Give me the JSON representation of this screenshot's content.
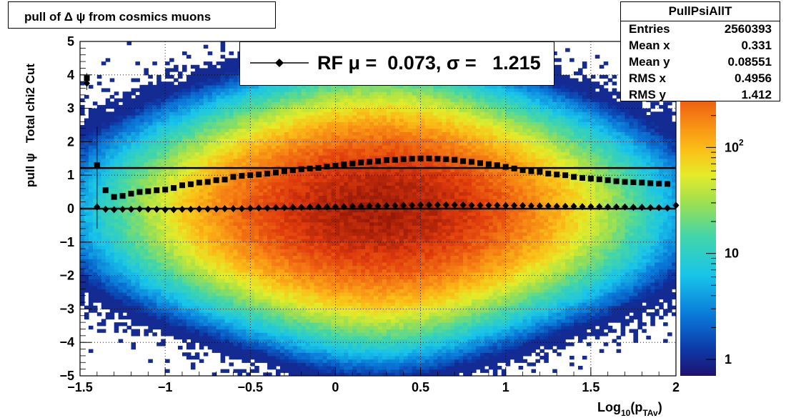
{
  "title": "pull of Δ ψ from cosmics muons",
  "stats": {
    "name": "PullPsiAllT",
    "rows": [
      {
        "key": "Entries",
        "value": "2560393"
      },
      {
        "key": "Mean x",
        "value": "0.331"
      },
      {
        "key": "Mean y",
        "value": "0.08551"
      },
      {
        "key": "RMS x",
        "value": "0.4956"
      },
      {
        "key": "RMS y",
        "value": "1.412"
      }
    ]
  },
  "legend": {
    "text": "RF μ =  0.073, σ =   1.215"
  },
  "colors": {
    "accent": "#000000"
  },
  "chart_data": {
    "type": "heatmap",
    "title": "pull of Δ ψ from cosmics muons",
    "xlabel": "Log10(pTAv)",
    "ylabel": "pull ψ   Total chi2 Cut",
    "xlim": [
      -1.5,
      2
    ],
    "ylim": [
      -5,
      5
    ],
    "x_tick_labels": [
      "−1.5",
      "−1",
      "−0.5",
      "0",
      "0.5",
      "1",
      "1.5",
      "2"
    ],
    "x_ticks": [
      -1.5,
      -1,
      -0.5,
      0,
      0.5,
      1,
      1.5,
      2
    ],
    "y_tick_labels": [
      "5",
      "4",
      "3",
      "2",
      "1",
      "0",
      "−1",
      "−2",
      "−3",
      "−4",
      "−5"
    ],
    "y_ticks": [
      5,
      4,
      3,
      2,
      1,
      0,
      -1,
      -2,
      -3,
      -4,
      -5
    ],
    "grid": true,
    "colorbar": {
      "scale": "log",
      "min": 0.7,
      "max": 1000,
      "labels": [
        {
          "value": 1,
          "text": "1"
        },
        {
          "value": 10,
          "text": "10"
        },
        {
          "value": 100,
          "text": "10",
          "sup": "2"
        }
      ]
    },
    "density": {
      "center_x": 0.25,
      "sigma_x": 0.55,
      "sigma_y": 1.4,
      "peak": 700
    },
    "reference_lines": [
      {
        "y": 1.215
      },
      {
        "y": 0
      }
    ],
    "series": [
      {
        "marker": "square",
        "x": [
          -1.46,
          -1.4,
          -1.35,
          -1.3,
          -1.25,
          -1.2,
          -1.15,
          -1.1,
          -1.05,
          -1.0,
          -0.95,
          -0.9,
          -0.85,
          -0.8,
          -0.75,
          -0.7,
          -0.65,
          -0.6,
          -0.55,
          -0.5,
          -0.45,
          -0.4,
          -0.35,
          -0.3,
          -0.25,
          -0.2,
          -0.15,
          -0.1,
          -0.05,
          0.0,
          0.05,
          0.1,
          0.15,
          0.2,
          0.25,
          0.3,
          0.35,
          0.4,
          0.45,
          0.5,
          0.55,
          0.6,
          0.65,
          0.7,
          0.75,
          0.8,
          0.85,
          0.9,
          0.95,
          1.0,
          1.05,
          1.1,
          1.15,
          1.2,
          1.25,
          1.3,
          1.35,
          1.4,
          1.45,
          1.5,
          1.55,
          1.6,
          1.65,
          1.7,
          1.75,
          1.8,
          1.85,
          1.9,
          1.95
        ],
        "y": [
          3.9,
          1.3,
          0.55,
          0.35,
          0.38,
          0.45,
          0.5,
          0.52,
          0.55,
          0.57,
          0.62,
          0.7,
          0.73,
          0.78,
          0.8,
          0.85,
          0.87,
          0.95,
          0.98,
          1.0,
          1.02,
          1.05,
          1.08,
          1.12,
          1.15,
          1.18,
          1.2,
          1.22,
          1.26,
          1.28,
          1.32,
          1.35,
          1.38,
          1.4,
          1.42,
          1.45,
          1.46,
          1.48,
          1.49,
          1.5,
          1.5,
          1.49,
          1.48,
          1.46,
          1.42,
          1.4,
          1.36,
          1.33,
          1.3,
          1.25,
          1.2,
          1.15,
          1.12,
          1.1,
          1.05,
          1.02,
          1.0,
          0.95,
          0.92,
          0.9,
          0.88,
          0.85,
          0.82,
          0.8,
          0.79,
          0.78,
          0.76,
          0.75,
          0.74
        ]
      },
      {
        "marker": "diamond",
        "x": [
          -1.46,
          -1.4,
          -1.35,
          -1.3,
          -1.25,
          -1.2,
          -1.15,
          -1.1,
          -1.05,
          -1.0,
          -0.95,
          -0.9,
          -0.85,
          -0.8,
          -0.75,
          -0.7,
          -0.65,
          -0.6,
          -0.55,
          -0.5,
          -0.45,
          -0.4,
          -0.35,
          -0.3,
          -0.25,
          -0.2,
          -0.15,
          -0.1,
          -0.05,
          0.0,
          0.05,
          0.1,
          0.15,
          0.2,
          0.25,
          0.3,
          0.35,
          0.4,
          0.45,
          0.5,
          0.55,
          0.6,
          0.65,
          0.7,
          0.75,
          0.8,
          0.85,
          0.9,
          0.95,
          1.0,
          1.05,
          1.1,
          1.15,
          1.2,
          1.25,
          1.3,
          1.35,
          1.4,
          1.45,
          1.5,
          1.55,
          1.6,
          1.65,
          1.7,
          1.75,
          1.8,
          1.85,
          1.9,
          1.95,
          2.0
        ],
        "y": [
          3.75,
          0.05,
          -0.02,
          -0.03,
          -0.02,
          -0.02,
          -0.01,
          -0.02,
          -0.02,
          -0.03,
          -0.03,
          -0.02,
          -0.02,
          -0.01,
          -0.01,
          -0.01,
          0.0,
          0.0,
          0.0,
          0.01,
          0.02,
          0.02,
          0.03,
          0.03,
          0.04,
          0.04,
          0.05,
          0.05,
          0.05,
          0.06,
          0.06,
          0.07,
          0.07,
          0.08,
          0.08,
          0.09,
          0.09,
          0.1,
          0.1,
          0.11,
          0.11,
          0.11,
          0.11,
          0.11,
          0.11,
          0.1,
          0.1,
          0.1,
          0.1,
          0.09,
          0.09,
          0.09,
          0.08,
          0.08,
          0.08,
          0.07,
          0.07,
          0.07,
          0.06,
          0.06,
          0.06,
          0.05,
          0.05,
          0.05,
          0.04,
          0.04,
          0.03,
          0.03,
          0.02,
          0.1
        ]
      }
    ]
  }
}
